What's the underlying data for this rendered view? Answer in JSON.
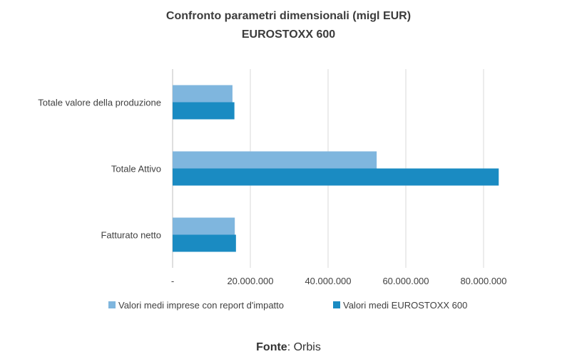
{
  "chart_data": {
    "type": "bar",
    "orientation": "horizontal",
    "title": "Confronto parametri dimensionali (migl EUR)",
    "subtitle": "EUROSTOXX 600",
    "categories": [
      "Totale valore della produzione",
      "Totale Attivo",
      "Fatturato netto"
    ],
    "series": [
      {
        "name": "Valori medi imprese con report d'impatto",
        "color": "#7fb6de",
        "values": [
          15400000,
          52500000,
          16000000
        ]
      },
      {
        "name": "Valori medi EUROSTOXX 600",
        "color": "#1a8bc2",
        "values": [
          15900000,
          83900000,
          16300000
        ]
      }
    ],
    "xlim": [
      0,
      100000000
    ],
    "xticks": [
      0,
      20000000,
      40000000,
      60000000,
      80000000
    ],
    "xtick_labels": [
      "-",
      "20.000.000",
      "40.000.000",
      "60.000.000",
      "80.000.000"
    ],
    "grid": true,
    "legend_position": "bottom"
  },
  "source": {
    "label": "Fonte",
    "value": ": Orbis"
  }
}
